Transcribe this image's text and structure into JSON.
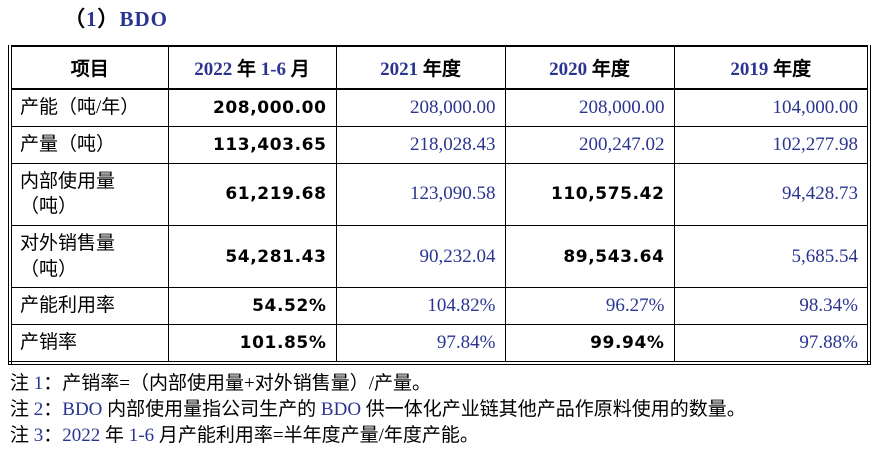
{
  "title": {
    "prefix": "（1）",
    "name": "BDO"
  },
  "table": {
    "columns": [
      "项目",
      "2022 年 1-6 月",
      "2021 年度",
      "2020 年度",
      "2019 年度"
    ],
    "rows": [
      {
        "label": "产能（吨/年）",
        "values": [
          "208,000.00",
          "208,000.00",
          "208,000.00",
          "104,000.00"
        ],
        "bold": [
          true,
          false,
          false,
          false
        ]
      },
      {
        "label": "产量（吨）",
        "values": [
          "113,403.65",
          "218,028.43",
          "200,247.02",
          "102,277.98"
        ],
        "bold": [
          true,
          false,
          false,
          false
        ]
      },
      {
        "label": "内部使用量\n（吨）",
        "values": [
          "61,219.68",
          "123,090.58",
          "110,575.42",
          "94,428.73"
        ],
        "bold": [
          true,
          false,
          true,
          false
        ]
      },
      {
        "label": "对外销售量\n（吨）",
        "values": [
          "54,281.43",
          "90,232.04",
          "89,543.64",
          "5,685.54"
        ],
        "bold": [
          true,
          false,
          true,
          false
        ]
      },
      {
        "label": "产能利用率",
        "values": [
          "54.52%",
          "104.82%",
          "96.27%",
          "98.34%"
        ],
        "bold": [
          true,
          false,
          false,
          false
        ]
      },
      {
        "label": "产销率",
        "values": [
          "101.85%",
          "97.84%",
          "99.94%",
          "97.88%"
        ],
        "bold": [
          true,
          false,
          true,
          false
        ]
      }
    ]
  },
  "notes": [
    "注 1：产销率=（内部使用量+对外销售量）/产量。",
    "注 2：BDO 内部使用量指公司生产的 BDO 供一体化产业链其他产品作原料使用的数量。",
    "注 3：2022 年 1-6 月产能利用率=半年度产量/年度产能。"
  ],
  "colors": {
    "latin_accent": "#2a3590",
    "text": "#000000",
    "border": "#000000",
    "background": "#ffffff"
  }
}
